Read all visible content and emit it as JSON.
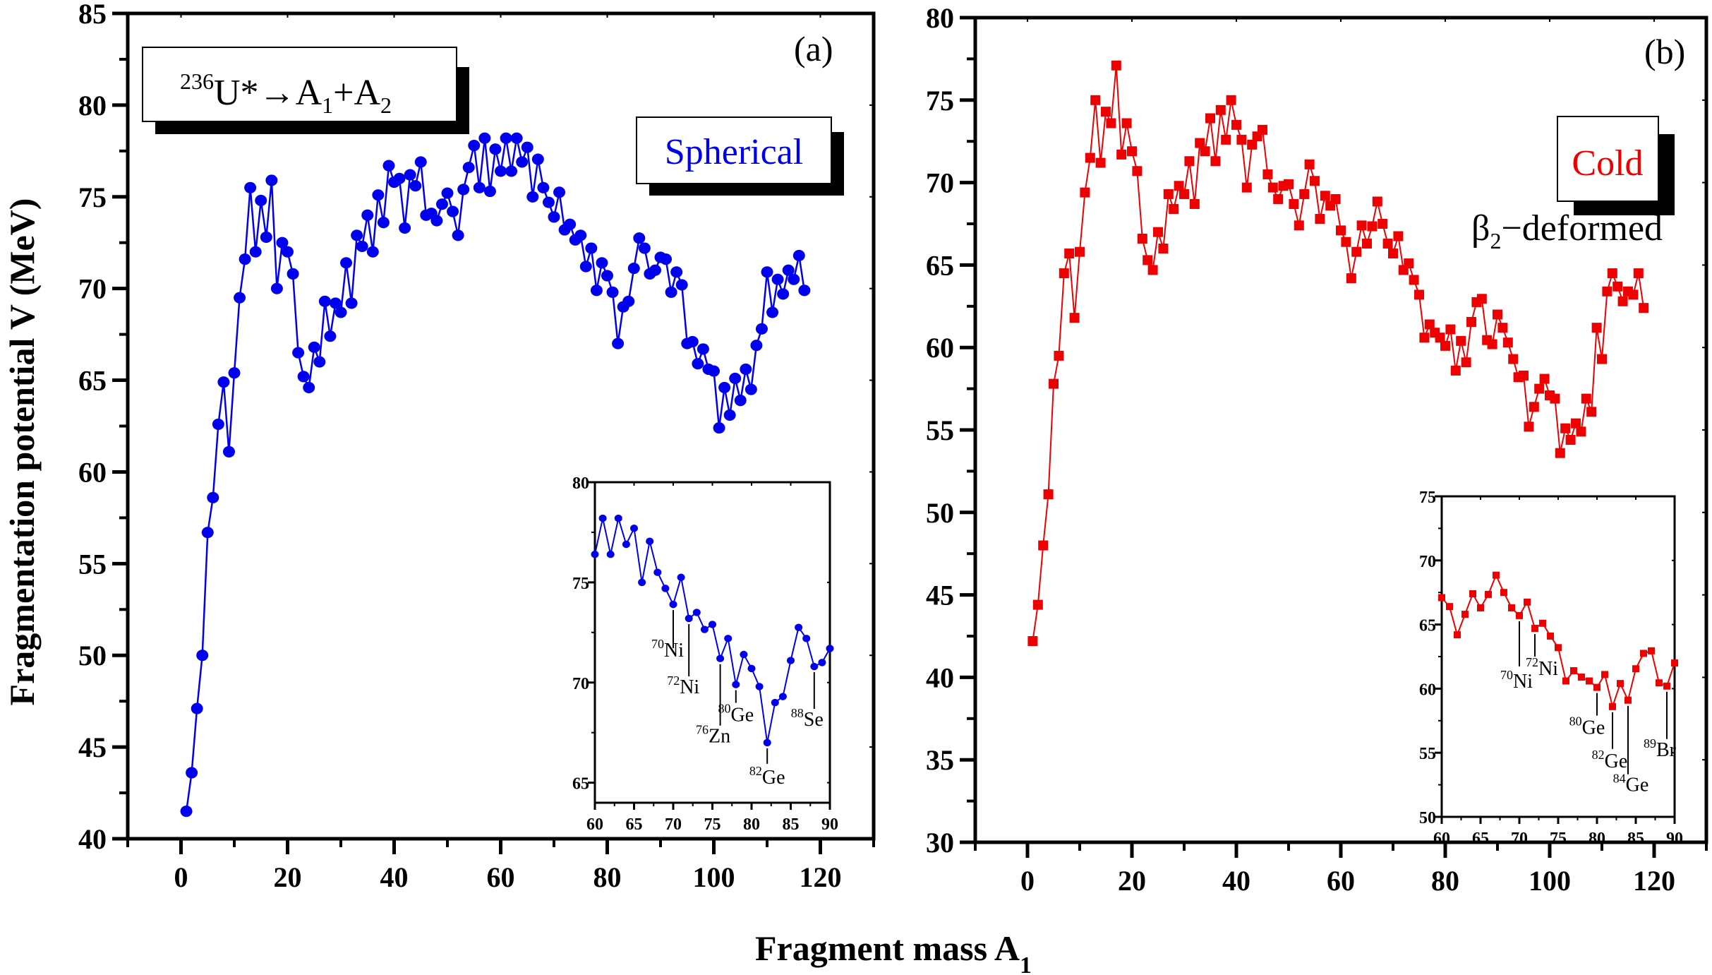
{
  "figure": {
    "xlabel_main": "Fragment mass A",
    "xlabel_sub": "1",
    "ylabel": "Fragmentation potential V (MeV)"
  },
  "chart_data": [
    {
      "id": "a",
      "type": "line",
      "panel_tag": "(a)",
      "title": "",
      "reaction": {
        "pre": "236",
        "nucleus": "U*",
        "arrow": "→",
        "a1": "A",
        "a1_sub": "1",
        "plus": "+",
        "a2": "A",
        "a2_sub": "2"
      },
      "label_box": "Spherical",
      "label_color": "#0000ee",
      "xlabel": "Fragment mass A1",
      "ylabel": "Fragmentation potential V (MeV)",
      "xlim": [
        -10,
        130
      ],
      "ylim": [
        40,
        85
      ],
      "xticks": [
        0,
        20,
        40,
        60,
        80,
        100,
        120
      ],
      "yticks": [
        40,
        45,
        50,
        55,
        60,
        65,
        70,
        75,
        80,
        85
      ],
      "grid": false,
      "series": [
        {
          "name": "Spherical",
          "color": "#0000ee",
          "marker": "circle",
          "x": [
            1,
            2,
            3,
            4,
            5,
            6,
            7,
            8,
            9,
            10,
            11,
            12,
            13,
            14,
            15,
            16,
            17,
            18,
            19,
            20,
            21,
            22,
            23,
            24,
            25,
            26,
            27,
            28,
            29,
            30,
            31,
            32,
            33,
            34,
            35,
            36,
            37,
            38,
            39,
            40,
            41,
            42,
            43,
            44,
            45,
            46,
            47,
            48,
            49,
            50,
            51,
            52,
            53,
            54,
            55,
            56,
            57,
            58,
            59,
            60,
            61,
            62,
            63,
            64,
            65,
            66,
            67,
            68,
            69,
            70,
            71,
            72,
            73,
            74,
            75,
            76,
            77,
            78,
            79,
            80,
            81,
            82,
            83,
            84,
            85,
            86,
            87,
            88,
            89,
            90,
            91,
            92,
            93,
            94,
            95,
            96,
            97,
            98,
            99,
            100,
            101,
            102,
            103,
            104,
            105,
            106,
            107,
            108,
            109,
            110,
            111,
            112,
            113,
            114,
            115,
            116,
            117
          ],
          "values": [
            41.5,
            43.6,
            47.1,
            50.0,
            56.7,
            58.6,
            62.6,
            64.9,
            61.1,
            65.4,
            69.5,
            71.6,
            75.5,
            72.0,
            74.8,
            72.8,
            75.9,
            70.0,
            72.5,
            72.0,
            70.8,
            66.5,
            65.2,
            64.6,
            66.8,
            66.0,
            69.3,
            67.4,
            69.2,
            68.7,
            71.4,
            69.2,
            72.9,
            72.3,
            74.0,
            72.0,
            75.1,
            73.6,
            76.7,
            75.8,
            76.0,
            73.3,
            76.2,
            75.6,
            76.9,
            74.0,
            74.1,
            73.7,
            74.6,
            75.2,
            74.2,
            72.9,
            75.4,
            76.6,
            77.8,
            75.5,
            78.2,
            75.3,
            77.6,
            76.4,
            78.2,
            76.4,
            78.2,
            76.9,
            77.7,
            75.0,
            77.05,
            75.5,
            74.7,
            73.9,
            75.25,
            73.2,
            73.5,
            72.65,
            72.9,
            71.2,
            72.2,
            69.9,
            71.4,
            70.7,
            69.8,
            67.0,
            69.0,
            69.3,
            71.1,
            72.75,
            72.2,
            70.8,
            71.0,
            71.7,
            71.6,
            69.8,
            70.9,
            70.2,
            67.0,
            67.1,
            65.9,
            66.7,
            65.6,
            65.5,
            62.4,
            64.6,
            63.1,
            65.1,
            63.9,
            65.6,
            64.5,
            66.9,
            67.8,
            70.9,
            68.7,
            70.5,
            69.7,
            71.0,
            70.5,
            71.8,
            69.9
          ]
        }
      ],
      "inset": {
        "xlim": [
          60,
          90
        ],
        "ylim": [
          64,
          80
        ],
        "xticks": [
          60,
          65,
          70,
          75,
          80,
          85,
          90
        ],
        "yticks": [
          65,
          70,
          75,
          80
        ],
        "annotations": [
          {
            "mass": "70",
            "element": "Ni",
            "x": 70
          },
          {
            "mass": "72",
            "element": "Ni",
            "x": 72
          },
          {
            "mass": "76",
            "element": "Zn",
            "x": 76
          },
          {
            "mass": "80",
            "element": "Ge",
            "x": 78
          },
          {
            "mass": "82",
            "element": "Ge",
            "x": 82
          },
          {
            "mass": "88",
            "element": "Se",
            "x": 88
          }
        ]
      }
    },
    {
      "id": "b",
      "type": "line",
      "panel_tag": "(b)",
      "title": "",
      "label_box": "Cold",
      "label_color": "#ee0000",
      "sublabel": {
        "beta": "β",
        "sub": "2",
        "text": "−deformed"
      },
      "xlabel": "Fragment mass A1",
      "ylabel": "",
      "xlim": [
        -10,
        130
      ],
      "ylim": [
        30,
        80
      ],
      "xticks": [
        0,
        20,
        40,
        60,
        80,
        100,
        120
      ],
      "yticks": [
        30,
        35,
        40,
        45,
        50,
        55,
        60,
        65,
        70,
        75,
        80
      ],
      "grid": false,
      "series": [
        {
          "name": "Cold β2-deformed",
          "color": "#ee0000",
          "marker": "square",
          "x": [
            1,
            2,
            3,
            4,
            5,
            6,
            7,
            8,
            9,
            10,
            11,
            12,
            13,
            14,
            15,
            16,
            17,
            18,
            19,
            20,
            21,
            22,
            23,
            24,
            25,
            26,
            27,
            28,
            29,
            30,
            31,
            32,
            33,
            34,
            35,
            36,
            37,
            38,
            39,
            40,
            41,
            42,
            43,
            44,
            45,
            46,
            47,
            48,
            49,
            50,
            51,
            52,
            53,
            54,
            55,
            56,
            57,
            58,
            59,
            60,
            61,
            62,
            63,
            64,
            65,
            66,
            67,
            68,
            69,
            70,
            71,
            72,
            73,
            74,
            75,
            76,
            77,
            78,
            79,
            80,
            81,
            82,
            83,
            84,
            85,
            86,
            87,
            88,
            89,
            90,
            91,
            92,
            93,
            94,
            95,
            96,
            97,
            98,
            99,
            100,
            101,
            102,
            103,
            104,
            105,
            106,
            107,
            108,
            109,
            110,
            111,
            112,
            113,
            114,
            115,
            116,
            117,
            118
          ],
          "values": [
            42.2,
            44.4,
            48.0,
            51.1,
            57.8,
            59.5,
            64.5,
            65.7,
            61.8,
            65.8,
            69.4,
            71.5,
            75.0,
            71.2,
            74.3,
            73.6,
            77.1,
            71.7,
            73.6,
            71.9,
            70.7,
            66.6,
            65.3,
            64.7,
            67.0,
            66.0,
            69.3,
            68.4,
            69.8,
            69.3,
            71.3,
            68.7,
            72.4,
            71.9,
            73.9,
            71.3,
            74.4,
            72.6,
            75.0,
            73.5,
            72.6,
            69.7,
            72.3,
            72.8,
            73.2,
            70.5,
            69.7,
            69.0,
            69.8,
            69.9,
            68.7,
            67.4,
            69.3,
            71.1,
            70.1,
            67.8,
            69.2,
            68.6,
            69.0,
            67.1,
            66.4,
            64.2,
            65.8,
            67.4,
            66.3,
            67.35,
            68.85,
            67.5,
            66.3,
            65.7,
            66.75,
            64.7,
            65.1,
            64.1,
            63.2,
            60.6,
            61.4,
            60.9,
            60.6,
            60.1,
            61.1,
            58.6,
            60.4,
            59.1,
            61.55,
            62.75,
            62.95,
            60.45,
            60.2,
            62.0,
            61.2,
            60.3,
            59.3,
            58.2,
            58.3,
            55.2,
            56.4,
            57.5,
            58.1,
            57.1,
            56.9,
            53.6,
            55.1,
            54.4,
            55.4,
            54.9,
            56.9,
            56.1,
            61.2,
            59.3,
            63.4,
            64.5,
            63.7,
            62.8,
            63.4,
            63.2,
            64.5,
            62.4
          ]
        }
      ],
      "inset": {
        "xlim": [
          60,
          90
        ],
        "ylim": [
          50,
          75
        ],
        "xticks": [
          60,
          65,
          70,
          75,
          80,
          85,
          90
        ],
        "yticks": [
          50,
          55,
          60,
          65,
          70,
          75
        ],
        "annotations": [
          {
            "mass": "70",
            "element": "Ni",
            "x": 70
          },
          {
            "mass": "72",
            "element": "Ni",
            "x": 72
          },
          {
            "mass": "80",
            "element": "Ge",
            "x": 80
          },
          {
            "mass": "82",
            "element": "Ge",
            "x": 82
          },
          {
            "mass": "84",
            "element": "Ge",
            "x": 84
          },
          {
            "mass": "89",
            "element": "Br",
            "x": 89
          }
        ]
      }
    }
  ]
}
